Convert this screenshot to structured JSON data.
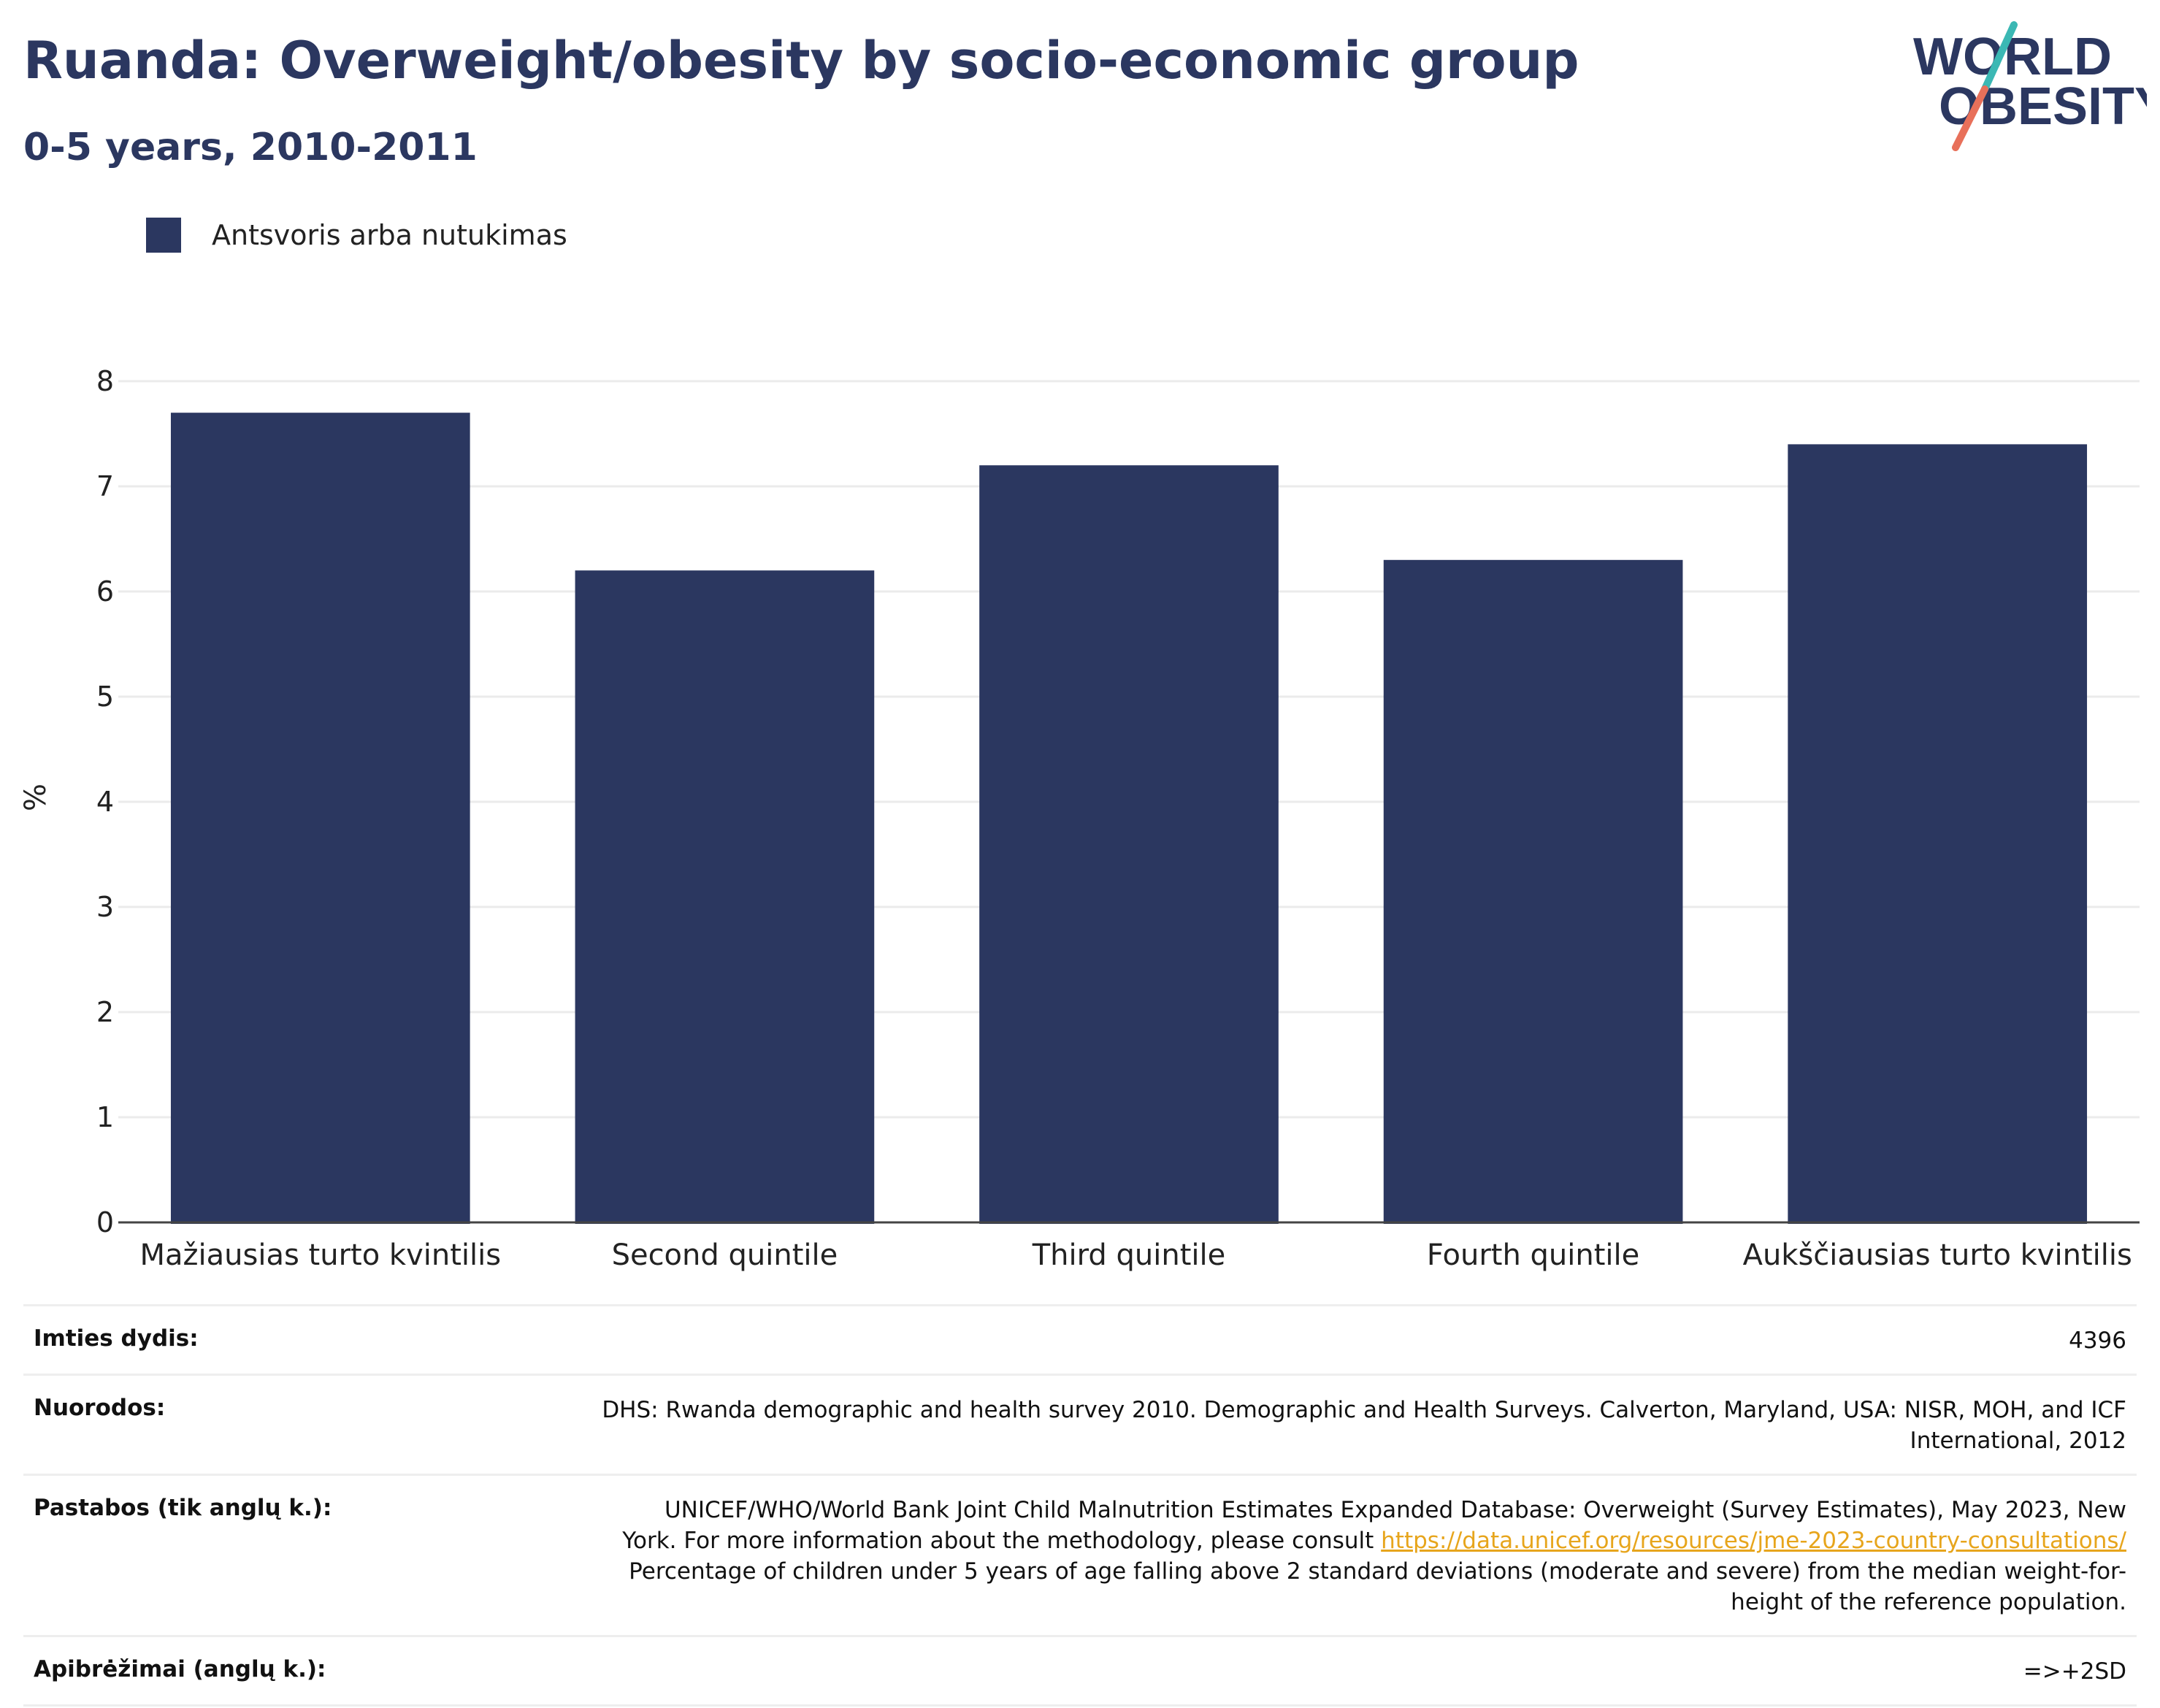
{
  "title": "Ruanda: Overweight/obesity by socio-economic group",
  "subtitle": "0-5 years, 2010-2011",
  "logo": {
    "line1": "WORLD",
    "line2": "OBESITY"
  },
  "colors": {
    "brand": "#2b3760",
    "bar": "#2b3760",
    "logo_teal": "#3bb8b4",
    "logo_coral": "#e8705a",
    "link": "#e7a51c"
  },
  "chart_data": {
    "type": "bar",
    "title": "Ruanda: Overweight/obesity by socio-economic group",
    "subtitle": "0-5 years, 2010-2011",
    "categories": [
      "Mažiausias turto kvintilis",
      "Second quintile",
      "Third quintile",
      "Fourth quintile",
      "Aukščiausias turto kvintilis"
    ],
    "series": [
      {
        "name": "Antsvoris arba nutukimas",
        "values": [
          7.7,
          6.2,
          7.2,
          6.3,
          7.4
        ],
        "color": "#2b3760"
      }
    ],
    "xlabel": "",
    "ylabel": "%",
    "ylim": [
      0,
      8
    ],
    "yticks": [
      0,
      1,
      2,
      3,
      4,
      5,
      6,
      7,
      8
    ],
    "grid": true,
    "legend": "top-left"
  },
  "info": {
    "sample_size": {
      "label": "Imties dydis:",
      "value": "4396"
    },
    "references": {
      "label": "Nuorodos:",
      "line1": "DHS: Rwanda demographic and health survey 2010. Demographic and Health Surveys. Calverton, Maryland, USA: NISR, MOH, and ICF",
      "line2": "International, 2012"
    },
    "notes": {
      "label": "Pastabos (tik anglų k.):",
      "line1": "UNICEF/WHO/World Bank Joint Child Malnutrition Estimates Expanded Database: Overweight (Survey Estimates), May 2023, New",
      "line2_pre": "York. For more information about the methodology, please consult ",
      "link": "https://data.unicef.org/resources/jme-2023-country-consultations/",
      "line3": "Percentage of children under 5 years of age falling above 2 standard deviations (moderate and severe) from the median weight-for-",
      "line4": "height of the reference population."
    },
    "definitions": {
      "label": "Apibrėžimai (anglų k.):",
      "value": "=>+2SD"
    }
  }
}
